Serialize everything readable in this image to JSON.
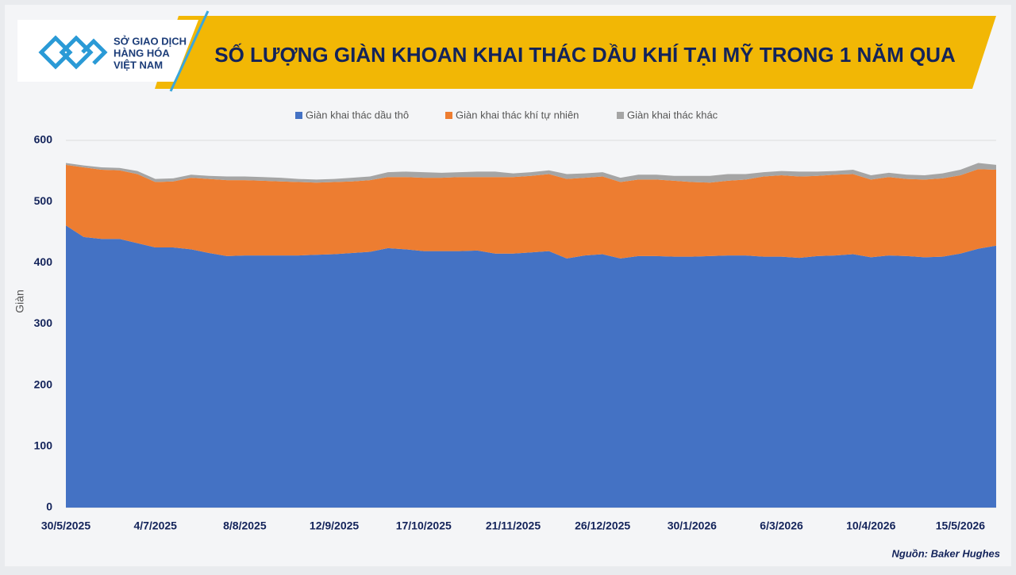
{
  "header": {
    "logo_lines": [
      "SỞ GIAO DỊCH",
      "HÀNG HÓA",
      "VIỆT NAM"
    ]
  },
  "chart_data": {
    "type": "stacked-area",
    "title": "SỐ LƯỢNG GIÀN KHOAN KHAI THÁC DẦU KHÍ TẠI MỸ TRONG 1 NĂM QUA",
    "y_label": "Giàn",
    "source": "Nguồn: Baker Hughes",
    "categories": [
      "30/5/2025",
      null,
      null,
      null,
      null,
      "4/7/2025",
      null,
      null,
      null,
      null,
      "8/8/2025",
      null,
      null,
      null,
      null,
      "12/9/2025",
      null,
      null,
      null,
      null,
      "17/10/2025",
      null,
      null,
      null,
      null,
      "21/11/2025",
      null,
      null,
      null,
      null,
      "26/12/2025",
      null,
      null,
      null,
      null,
      "30/1/2026",
      null,
      null,
      null,
      null,
      "6/3/2026",
      null,
      null,
      null,
      null,
      "10/4/2026",
      null,
      null,
      null,
      null,
      "15/5/2026",
      null,
      null
    ],
    "series": [
      {
        "name": "Giàn khai thác dầu thô",
        "color": "#4472c4",
        "values": [
          461,
          442,
          439,
          439,
          432,
          425,
          425,
          422,
          416,
          411,
          412,
          412,
          412,
          412,
          413,
          414,
          416,
          418,
          424,
          422,
          419,
          419,
          419,
          420,
          415,
          415,
          417,
          419,
          407,
          412,
          414,
          407,
          411,
          411,
          410,
          410,
          411,
          412,
          412,
          410,
          410,
          408,
          411,
          412,
          414,
          409,
          412,
          411,
          409,
          410,
          415,
          423,
          428
        ]
      },
      {
        "name": "Giàn khai thác khí tự nhiên",
        "color": "#ed7d31",
        "values": [
          99,
          114,
          113,
          112,
          113,
          107,
          108,
          117,
          121,
          124,
          123,
          122,
          121,
          120,
          118,
          118,
          117,
          117,
          116,
          118,
          120,
          120,
          121,
          120,
          125,
          125,
          125,
          126,
          130,
          127,
          127,
          125,
          125,
          125,
          124,
          122,
          120,
          122,
          124,
          131,
          133,
          133,
          131,
          132,
          131,
          127,
          128,
          126,
          127,
          128,
          128,
          130,
          124
        ]
      },
      {
        "name": "Giàn khai thác khác",
        "color": "#a5a5a5",
        "values": [
          3,
          3,
          4,
          4,
          5,
          5,
          5,
          5,
          5,
          6,
          6,
          6,
          6,
          5,
          5,
          5,
          6,
          6,
          8,
          9,
          9,
          8,
          8,
          9,
          9,
          6,
          6,
          6,
          8,
          7,
          7,
          7,
          8,
          8,
          8,
          10,
          11,
          11,
          9,
          7,
          7,
          8,
          7,
          6,
          7,
          7,
          7,
          7,
          7,
          8,
          9,
          10,
          8
        ]
      }
    ],
    "ylim": [
      0,
      600
    ],
    "yticks": [
      0,
      100,
      200,
      300,
      400,
      500,
      600
    ],
    "grid": true
  }
}
